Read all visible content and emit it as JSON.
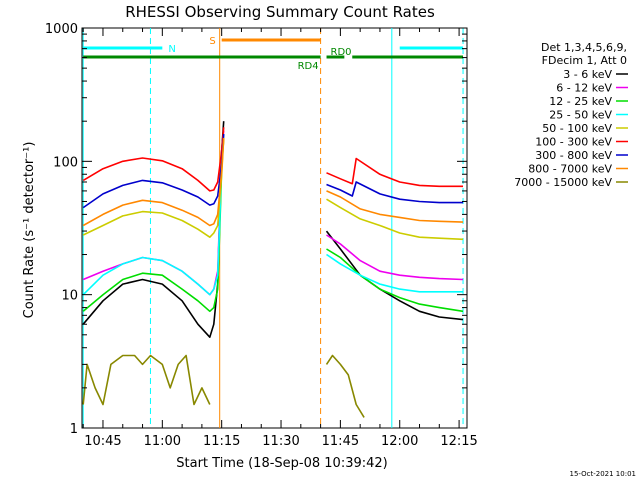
{
  "chart_data": {
    "type": "line",
    "title": "RHESSI Observing Summary Count Rates",
    "xlabel": "Start Time (18-Sep-08 10:39:42)",
    "ylabel": "Count Rate (s⁻¹ detector⁻¹)",
    "x_scale": "time",
    "y_scale": "log",
    "xlim": [
      "10:39:42",
      "12:17:00"
    ],
    "ylim": [
      1,
      1000
    ],
    "x_ticks": [
      "10:45",
      "11:00",
      "11:15",
      "11:30",
      "11:45",
      "12:00",
      "12:15"
    ],
    "y_ticks": [
      "1",
      "10",
      "100",
      "1000"
    ],
    "grid": false,
    "legend_position": "top-right",
    "legend_header": [
      "Det 1,3,4,5,6,9,",
      "FDecim 1, Att 0"
    ],
    "data_gap": [
      "11:15:30",
      "11:41:30"
    ],
    "series": [
      {
        "name": "3 - 6 keV",
        "color": "#000000",
        "x": [
          "10:40",
          "10:45",
          "10:50",
          "10:55",
          "11:00",
          "11:05",
          "11:09",
          "11:12",
          "11:13",
          "11:14",
          "11:14:30",
          "11:15",
          "11:15:30",
          "11:41:30",
          "11:45",
          "11:50",
          "11:55",
          "12:00",
          "12:05",
          "12:10",
          "12:16"
        ],
        "y": [
          6,
          9,
          12,
          13,
          12,
          9,
          6,
          4.8,
          6,
          12,
          40,
          120,
          200,
          30,
          22,
          14,
          11,
          9,
          7.5,
          6.8,
          6.5
        ]
      },
      {
        "name": "6 - 12 keV",
        "color": "#ee00ee",
        "x": [
          "10:40",
          "10:45",
          "10:50",
          "10:55",
          "11:00",
          "11:05",
          "11:09",
          "11:12",
          "11:13",
          "11:14",
          "11:14:30",
          "11:15",
          "11:15:30",
          "11:41:30",
          "11:45",
          "11:50",
          "11:55",
          "12:00",
          "12:05",
          "12:10",
          "12:16"
        ],
        "y": [
          13,
          15,
          17,
          19,
          18,
          15,
          12,
          10,
          11,
          15,
          40,
          120,
          170,
          28,
          24,
          18,
          15,
          14,
          13.5,
          13.2,
          13
        ]
      },
      {
        "name": "12 - 25 keV",
        "color": "#00dd00",
        "x": [
          "10:40",
          "10:45",
          "10:50",
          "10:55",
          "11:00",
          "11:05",
          "11:09",
          "11:12",
          "11:13",
          "11:14",
          "11:14:30",
          "11:15",
          "11:15:30",
          "11:41:30",
          "11:45",
          "11:50",
          "11:55",
          "12:00",
          "12:05",
          "12:10",
          "12:16"
        ],
        "y": [
          7.5,
          10,
          13,
          14.5,
          14,
          11,
          9,
          7.5,
          8,
          11,
          30,
          90,
          150,
          22,
          19,
          14,
          11,
          9.5,
          8.5,
          8,
          7.5
        ]
      },
      {
        "name": "25 - 50 keV",
        "color": "#00ffff",
        "x": [
          "10:40",
          "10:45",
          "10:50",
          "10:55",
          "11:00",
          "11:05",
          "11:09",
          "11:12",
          "11:13",
          "11:14",
          "11:14:30",
          "11:15",
          "11:15:30",
          "11:41:30",
          "11:45",
          "11:50",
          "11:55",
          "12:00",
          "12:05",
          "12:10",
          "12:16"
        ],
        "y": [
          10,
          14,
          17,
          19,
          18,
          15,
          12,
          10,
          11,
          14,
          35,
          110,
          160,
          20,
          17,
          14,
          12,
          11,
          10.5,
          10.5,
          10.5
        ]
      },
      {
        "name": "50 - 100 keV",
        "color": "#cccc00",
        "x": [
          "10:40",
          "10:45",
          "10:50",
          "10:55",
          "11:00",
          "11:05",
          "11:09",
          "11:12",
          "11:13",
          "11:14",
          "11:15",
          "11:15:30",
          "11:41:30",
          "11:45",
          "11:50",
          "11:55",
          "12:00",
          "12:05",
          "12:10",
          "12:16"
        ],
        "y": [
          28,
          33,
          39,
          42,
          41,
          36,
          31,
          27,
          29,
          33,
          80,
          150,
          52,
          45,
          37,
          33,
          29,
          27,
          26.5,
          26
        ]
      },
      {
        "name": "100 - 300 keV",
        "color": "#ff0000",
        "x": [
          "10:40",
          "10:45",
          "10:50",
          "10:55",
          "11:00",
          "11:05",
          "11:09",
          "11:12",
          "11:13",
          "11:14",
          "11:15",
          "11:15:30",
          "11:41:30",
          "11:45",
          "11:48",
          "11:49",
          "11:55",
          "12:00",
          "12:05",
          "12:10",
          "12:16"
        ],
        "y": [
          72,
          88,
          100,
          106,
          101,
          88,
          72,
          60,
          61,
          70,
          120,
          180,
          82,
          74,
          68,
          105,
          80,
          70,
          66,
          65,
          65
        ]
      },
      {
        "name": "300 - 800 keV",
        "color": "#0000cc",
        "x": [
          "10:40",
          "10:45",
          "10:50",
          "10:55",
          "11:00",
          "11:05",
          "11:09",
          "11:12",
          "11:13",
          "11:14",
          "11:15",
          "11:15:30",
          "11:41:30",
          "11:45",
          "11:48",
          "11:49",
          "11:55",
          "12:00",
          "12:05",
          "12:10",
          "12:16"
        ],
        "y": [
          45,
          57,
          66,
          72,
          69,
          61,
          54,
          47,
          48,
          55,
          95,
          160,
          67,
          61,
          55,
          70,
          57,
          52,
          50,
          49,
          49
        ]
      },
      {
        "name": "800 - 7000 keV",
        "color": "#ff8800",
        "x": [
          "10:40",
          "10:45",
          "10:50",
          "10:55",
          "11:00",
          "11:05",
          "11:09",
          "11:12",
          "11:13",
          "11:14",
          "11:15",
          "11:15:30",
          "11:41:30",
          "11:45",
          "11:50",
          "11:55",
          "12:00",
          "12:05",
          "12:10",
          "12:16"
        ],
        "y": [
          33,
          40,
          47,
          51,
          49,
          43,
          38,
          33,
          34,
          40,
          85,
          150,
          60,
          54,
          44,
          40,
          38,
          36,
          35.5,
          35
        ]
      },
      {
        "name": "7000 - 15000 keV",
        "color": "#888800",
        "x": [
          "10:40",
          "10:41",
          "10:43",
          "10:45",
          "10:47",
          "10:50",
          "10:53",
          "10:55",
          "10:57",
          "11:00",
          "11:02",
          "11:04",
          "11:06",
          "11:08",
          "11:10",
          "11:12",
          "11:41:30",
          "11:43",
          "11:45",
          "11:47",
          "11:49",
          "11:51"
        ],
        "y": [
          1.5,
          3,
          2,
          1.5,
          3,
          3.5,
          3.5,
          3,
          3.5,
          3,
          2,
          3,
          3.5,
          1.5,
          2,
          1.5,
          3,
          3.5,
          3,
          2.5,
          1.5,
          1.2
        ]
      }
    ],
    "bars": [
      {
        "label": "N",
        "color": "#00ffff",
        "spans": [
          [
            "10:40",
            "11:00"
          ],
          [
            "12:00",
            "12:16"
          ]
        ]
      },
      {
        "label": "S",
        "color": "#ff8800",
        "spans": [
          [
            "11:15",
            "11:40"
          ]
        ]
      },
      {
        "label": "RD4",
        "color": "#008800",
        "spans": [
          [
            "10:40",
            "11:40"
          ]
        ]
      },
      {
        "label": "RD0",
        "color": "#008800",
        "spans": [
          [
            "11:41:30",
            "11:46"
          ],
          [
            "11:48",
            "12:16"
          ]
        ]
      }
    ],
    "vlines": [
      {
        "x": "10:40",
        "color": "#00ffff",
        "style": "solid"
      },
      {
        "x": "10:57",
        "color": "#00ffff",
        "style": "dashed"
      },
      {
        "x": "11:14:30",
        "color": "#ff8800",
        "style": "solid"
      },
      {
        "x": "11:40",
        "color": "#ff8800",
        "style": "dashed"
      },
      {
        "x": "11:58",
        "color": "#00ffff",
        "style": "solid"
      },
      {
        "x": "12:16",
        "color": "#00ffff",
        "style": "dashed"
      }
    ]
  },
  "footer": {
    "stamp": "15-Oct-2021 10:01"
  }
}
